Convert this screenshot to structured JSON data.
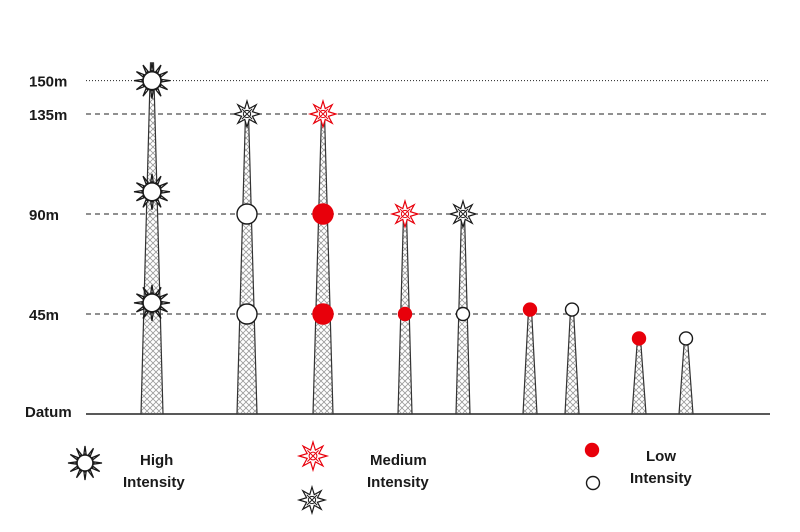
{
  "colors": {
    "red": "#e8000b",
    "black": "#1a1a1a",
    "white": "#ffffff"
  },
  "axis": {
    "labels": [
      {
        "text": "150m",
        "height": 150,
        "line": "dotted"
      },
      {
        "text": "135m",
        "height": 135,
        "line": "dashed"
      },
      {
        "text": "90m",
        "height": 90,
        "line": "dashed"
      },
      {
        "text": "45m",
        "height": 45,
        "line": "dashed"
      }
    ],
    "datum_label": "Datum"
  },
  "towers": [
    {
      "height": 158,
      "lights": [
        {
          "height": 150,
          "type": "high-sun",
          "color": "black"
        },
        {
          "height": 100,
          "type": "high-sun",
          "color": "black"
        },
        {
          "height": 50,
          "type": "high-sun",
          "color": "black"
        }
      ]
    },
    {
      "height": 135,
      "lights": [
        {
          "height": 135,
          "type": "medium-star",
          "color": "black"
        },
        {
          "height": 90,
          "type": "low-circle",
          "color": "white"
        },
        {
          "height": 45,
          "type": "low-circle",
          "color": "white"
        }
      ]
    },
    {
      "height": 135,
      "lights": [
        {
          "height": 135,
          "type": "medium-star",
          "color": "red"
        },
        {
          "height": 90,
          "type": "low-circle",
          "color": "red"
        },
        {
          "height": 45,
          "type": "low-circle",
          "color": "red"
        }
      ]
    },
    {
      "height": 90,
      "lights": [
        {
          "height": 90,
          "type": "medium-star",
          "color": "red"
        },
        {
          "height": 45,
          "type": "low-circle-small",
          "color": "red"
        }
      ]
    },
    {
      "height": 90,
      "lights": [
        {
          "height": 90,
          "type": "medium-star",
          "color": "black"
        },
        {
          "height": 45,
          "type": "low-circle-small",
          "color": "white"
        }
      ]
    },
    {
      "height": 47,
      "lights": [
        {
          "height": 47,
          "type": "low-circle-small",
          "color": "red"
        }
      ]
    },
    {
      "height": 47,
      "lights": [
        {
          "height": 47,
          "type": "low-circle-small",
          "color": "white"
        }
      ]
    },
    {
      "height": 34,
      "lights": [
        {
          "height": 34,
          "type": "low-circle-small",
          "color": "red"
        }
      ]
    },
    {
      "height": 34,
      "lights": [
        {
          "height": 34,
          "type": "low-circle-small",
          "color": "white"
        }
      ]
    }
  ],
  "legend": {
    "high": {
      "line1": "High",
      "line2": "Intensity"
    },
    "medium": {
      "line1": "Medium",
      "line2": "Intensity"
    },
    "low": {
      "line1": "Low",
      "line2": "Intensity"
    }
  }
}
